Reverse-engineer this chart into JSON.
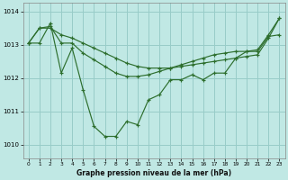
{
  "title": "Graphe pression niveau de la mer (hPa)",
  "background_color": "#c0e8e4",
  "grid_color": "#98ccc8",
  "line_color": "#2d6e2d",
  "xlim": [
    -0.5,
    23.5
  ],
  "ylim": [
    1009.6,
    1014.25
  ],
  "yticks": [
    1010,
    1011,
    1012,
    1013,
    1014
  ],
  "xticks": [
    0,
    1,
    2,
    3,
    4,
    5,
    6,
    7,
    8,
    9,
    10,
    11,
    12,
    13,
    14,
    15,
    16,
    17,
    18,
    19,
    20,
    21,
    22,
    23
  ],
  "series1_x": [
    0,
    1,
    2,
    3,
    4,
    5,
    6,
    7,
    8,
    9,
    10,
    11,
    12,
    13,
    14,
    15,
    16,
    17,
    18,
    19,
    20,
    21,
    22,
    23
  ],
  "series1_y": [
    1013.05,
    1013.05,
    1013.65,
    1012.15,
    1012.9,
    1011.65,
    1010.55,
    1010.25,
    1010.25,
    1010.7,
    1010.6,
    1011.35,
    1011.5,
    1011.95,
    1011.95,
    1012.1,
    1011.95,
    1012.15,
    1012.15,
    1012.6,
    1012.8,
    1012.8,
    1013.25,
    1013.3
  ],
  "series2_x": [
    0,
    1,
    2,
    3,
    4,
    5,
    6,
    7,
    8,
    9,
    10,
    11,
    12,
    13,
    14,
    15,
    16,
    17,
    18,
    19,
    20,
    21,
    22,
    23
  ],
  "series2_y": [
    1013.05,
    1013.5,
    1013.55,
    1013.05,
    1013.05,
    1012.75,
    1012.55,
    1012.35,
    1012.15,
    1012.05,
    1012.05,
    1012.1,
    1012.2,
    1012.3,
    1012.4,
    1012.5,
    1012.6,
    1012.7,
    1012.75,
    1012.8,
    1012.8,
    1012.85,
    1013.3,
    1013.8
  ],
  "series3_x": [
    0,
    1,
    2,
    3,
    4,
    5,
    6,
    7,
    8,
    9,
    10,
    11,
    12,
    13,
    14,
    15,
    16,
    17,
    18,
    19,
    20,
    21,
    22,
    23
  ],
  "series3_y": [
    1013.05,
    1013.5,
    1013.5,
    1013.3,
    1013.2,
    1013.05,
    1012.9,
    1012.75,
    1012.6,
    1012.45,
    1012.35,
    1012.3,
    1012.3,
    1012.3,
    1012.35,
    1012.4,
    1012.45,
    1012.5,
    1012.55,
    1012.6,
    1012.65,
    1012.7,
    1013.2,
    1013.8
  ]
}
